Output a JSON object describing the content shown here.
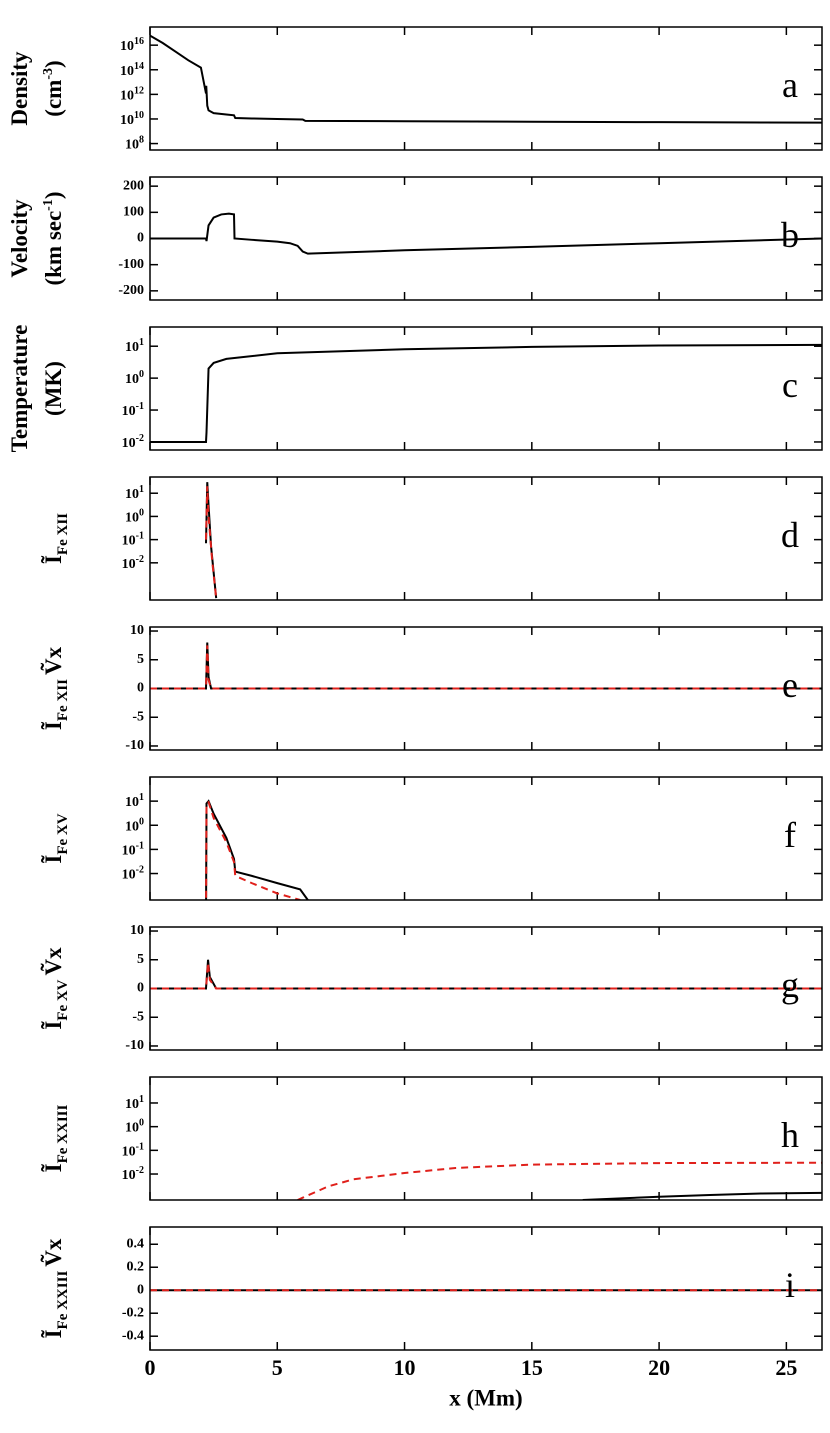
{
  "chart_data": [
    {
      "type": "line",
      "annotation": "a",
      "log_y": true,
      "ylabel": [
        [
          {
            "text": "Density"
          }
        ],
        [
          {
            "text": "(cm"
          },
          {
            "text": "-3",
            "shift": "sup"
          },
          {
            "text": ")"
          }
        ]
      ],
      "xlim": [
        0,
        26.4
      ],
      "xticks": [
        0,
        5,
        10,
        15,
        20,
        25
      ],
      "ylim": [
        30000000.0,
        3e+17
      ],
      "yticks": [
        {
          "value": 100000000.0,
          "label": "10",
          "sup": "8"
        },
        {
          "value": 10000000000.0,
          "label": "10",
          "sup": "10"
        },
        {
          "value": 1000000000000.0,
          "label": "10",
          "sup": "12"
        },
        {
          "value": 100000000000000.0,
          "label": "10",
          "sup": "14"
        },
        {
          "value": 1e+16,
          "label": "10",
          "sup": "16"
        }
      ],
      "series": [
        {
          "color": "#000000",
          "dash": false,
          "x": [
            0,
            0.5,
            1,
            1.5,
            2,
            2.2,
            2.21,
            2.25,
            2.3,
            2.5,
            3,
            3.3,
            3.35,
            4,
            5,
            6,
            6.1,
            10,
            15,
            20,
            26.4
          ],
          "values": [
            6e+16,
            1.5e+16,
            3000000000000000.0,
            600000000000000.0,
            150000000000000.0,
            1200000000000.0,
            5000000000000.0,
            120000000000.0,
            50000000000.0,
            30000000000.0,
            23000000000.0,
            20000000000.0,
            12000000000.0,
            11000000000.0,
            10000000000.0,
            9000000000.0,
            7000000000.0,
            6500000000.0,
            6000000000.0,
            5500000000.0,
            5000000000.0
          ]
        }
      ]
    },
    {
      "type": "line",
      "annotation": "b",
      "log_y": false,
      "ylabel": [
        [
          {
            "text": "Velocity"
          }
        ],
        [
          {
            "text": "(km sec"
          },
          {
            "text": "-1",
            "shift": "sup"
          },
          {
            "text": ")"
          }
        ]
      ],
      "xlim": [
        0,
        26.4
      ],
      "xticks": [
        0,
        5,
        10,
        15,
        20,
        25
      ],
      "ylim": [
        -235,
        235
      ],
      "yticks": [
        200,
        100,
        0,
        -100,
        -200
      ],
      "series": [
        {
          "color": "#000000",
          "dash": false,
          "x": [
            0,
            2.2,
            2.22,
            2.3,
            2.5,
            2.8,
            3.1,
            3.3,
            3.32,
            4,
            5,
            5.5,
            5.8,
            6,
            6.2,
            10,
            15,
            20,
            26.4
          ],
          "values": [
            0,
            0,
            -10,
            50,
            80,
            92,
            95,
            92,
            0,
            -5,
            -12,
            -18,
            -28,
            -50,
            -58,
            -45,
            -32,
            -18,
            0
          ]
        }
      ]
    },
    {
      "type": "line",
      "annotation": "c",
      "log_y": true,
      "ylabel": [
        [
          {
            "text": "Temperature"
          }
        ],
        [
          {
            "text": "(MK)"
          }
        ]
      ],
      "xlim": [
        0,
        26.4
      ],
      "xticks": [
        0,
        5,
        10,
        15,
        20,
        25
      ],
      "ylim": [
        0.0056,
        40
      ],
      "yticks": [
        {
          "value": 0.01,
          "label": "10",
          "sup": "-2"
        },
        {
          "value": 0.1,
          "label": "10",
          "sup": "-1"
        },
        {
          "value": 1,
          "label": "10",
          "sup": "0"
        },
        {
          "value": 10,
          "label": "10",
          "sup": "1"
        }
      ],
      "series": [
        {
          "color": "#000000",
          "dash": false,
          "x": [
            0,
            2.2,
            2.22,
            2.3,
            2.5,
            3,
            5,
            10,
            15,
            20,
            26.4
          ],
          "values": [
            0.01,
            0.01,
            0.02,
            2,
            3,
            4,
            6,
            8,
            9.5,
            10.5,
            11
          ]
        }
      ]
    },
    {
      "type": "line",
      "annotation": "d",
      "log_y": true,
      "ylabel": [
        [
          {
            "text": "Ĩ"
          },
          {
            "text": "Fe XII",
            "shift": "sub"
          }
        ]
      ],
      "xlim": [
        0,
        26.4
      ],
      "xticks": [
        0,
        5,
        10,
        15,
        20,
        25
      ],
      "ylim": [
        0.00025,
        50
      ],
      "yticks": [
        {
          "value": 0.01,
          "label": "10",
          "sup": "-2"
        },
        {
          "value": 0.1,
          "label": "10",
          "sup": "-1"
        },
        {
          "value": 1,
          "label": "10",
          "sup": "0"
        },
        {
          "value": 10,
          "label": "10",
          "sup": "1"
        }
      ],
      "series": [
        {
          "color": "#000000",
          "dash": false,
          "x": [
            2.2,
            2.25,
            2.3,
            2.4,
            2.6
          ],
          "values": [
            0.07,
            30,
            3,
            0.05,
            0.0003
          ]
        },
        {
          "color": "#e0201b",
          "dash": true,
          "x": [
            2.2,
            2.25,
            2.3,
            2.45,
            2.6
          ],
          "values": [
            0.1,
            20,
            1,
            0.01,
            0.0003
          ]
        }
      ]
    },
    {
      "type": "line",
      "annotation": "e",
      "log_y": false,
      "ylabel": [
        [
          {
            "text": "Ĩ"
          },
          {
            "text": "Fe XII",
            "shift": "sub"
          },
          {
            "text": "Ṽx"
          }
        ]
      ],
      "xlim": [
        0,
        26.4
      ],
      "xticks": [
        0,
        5,
        10,
        15,
        20,
        25
      ],
      "ylim": [
        -10.7,
        10.7
      ],
      "yticks": [
        10,
        5,
        0,
        -5,
        -10
      ],
      "series": [
        {
          "color": "#000000",
          "dash": false,
          "x": [
            0,
            2.2,
            2.25,
            2.3,
            2.4,
            26.4
          ],
          "values": [
            0,
            0,
            8,
            2,
            0,
            0
          ]
        },
        {
          "color": "#e0201b",
          "dash": true,
          "x": [
            0,
            2.2,
            2.25,
            2.3,
            2.4,
            26.4
          ],
          "values": [
            0,
            0,
            7.5,
            1.5,
            0,
            0
          ]
        }
      ]
    },
    {
      "type": "line",
      "annotation": "f",
      "log_y": true,
      "ylabel": [
        [
          {
            "text": "Ĩ"
          },
          {
            "text": "Fe XV",
            "shift": "sub"
          }
        ]
      ],
      "xlim": [
        0,
        26.4
      ],
      "xticks": [
        0,
        5,
        10,
        15,
        20,
        25
      ],
      "ylim": [
        0.0008,
        100
      ],
      "yticks": [
        {
          "value": 0.01,
          "label": "10",
          "sup": "-2"
        },
        {
          "value": 0.1,
          "label": "10",
          "sup": "-1"
        },
        {
          "value": 1,
          "label": "10",
          "sup": "0"
        },
        {
          "value": 10,
          "label": "10",
          "sup": "1"
        }
      ],
      "series": [
        {
          "color": "#000000",
          "dash": false,
          "x": [
            2.2,
            2.22,
            2.3,
            2.5,
            3,
            3.3,
            3.35,
            4,
            5,
            5.9,
            6.2
          ],
          "values": [
            0.0001,
            8,
            10,
            3,
            0.3,
            0.04,
            0.012,
            0.008,
            0.004,
            0.0022,
            0.0008
          ]
        },
        {
          "color": "#e0201b",
          "dash": true,
          "x": [
            2.2,
            2.22,
            2.3,
            2.5,
            3,
            3.3,
            3.35,
            4,
            5,
            5.9
          ],
          "values": [
            0.0001,
            8,
            9,
            2,
            0.2,
            0.03,
            0.008,
            0.004,
            0.0015,
            0.0008
          ]
        }
      ]
    },
    {
      "type": "line",
      "annotation": "g",
      "log_y": false,
      "ylabel": [
        [
          {
            "text": "Ĩ"
          },
          {
            "text": "Fe XV",
            "shift": "sub"
          },
          {
            "text": "Ṽx"
          }
        ]
      ],
      "xlim": [
        0,
        26.4
      ],
      "xticks": [
        0,
        5,
        10,
        15,
        20,
        25
      ],
      "ylim": [
        -10.7,
        10.7
      ],
      "yticks": [
        10,
        5,
        0,
        -5,
        -10
      ],
      "series": [
        {
          "color": "#000000",
          "dash": false,
          "x": [
            0,
            2.2,
            2.28,
            2.35,
            2.6,
            26.4
          ],
          "values": [
            0,
            0,
            5,
            2,
            0,
            0
          ]
        },
        {
          "color": "#e0201b",
          "dash": true,
          "x": [
            0,
            2.2,
            2.28,
            2.35,
            2.6,
            26.4
          ],
          "values": [
            0,
            0,
            4.5,
            1.5,
            0,
            0
          ]
        }
      ]
    },
    {
      "type": "line",
      "annotation": "h",
      "log_y": true,
      "ylabel": [
        [
          {
            "text": "Ĩ"
          },
          {
            "text": "Fe XXIII",
            "shift": "sub"
          }
        ]
      ],
      "xlim": [
        0,
        26.4
      ],
      "xticks": [
        0,
        5,
        10,
        15,
        20,
        25
      ],
      "ylim": [
        0.0008,
        125
      ],
      "yticks": [
        {
          "value": 0.01,
          "label": "10",
          "sup": "-2"
        },
        {
          "value": 0.1,
          "label": "10",
          "sup": "-1"
        },
        {
          "value": 1,
          "label": "10",
          "sup": "0"
        },
        {
          "value": 10,
          "label": "10",
          "sup": "1"
        }
      ],
      "series": [
        {
          "color": "#000000",
          "dash": false,
          "x": [
            17,
            20,
            22,
            24,
            26.4
          ],
          "values": [
            0.0008,
            0.0011,
            0.0013,
            0.0015,
            0.0016
          ]
        },
        {
          "color": "#e0201b",
          "dash": true,
          "x": [
            5.8,
            6,
            7,
            8,
            10,
            12,
            15,
            20,
            26.4
          ],
          "values": [
            0.0008,
            0.001,
            0.003,
            0.006,
            0.011,
            0.018,
            0.025,
            0.029,
            0.03
          ]
        }
      ]
    },
    {
      "type": "line",
      "annotation": "i",
      "log_y": false,
      "ylabel": [
        [
          {
            "text": "Ĩ"
          },
          {
            "text": "Fe XXIII",
            "shift": "sub"
          },
          {
            "text": "Ṽx"
          }
        ]
      ],
      "xlim": [
        0,
        26.4
      ],
      "xticks": [
        0,
        5,
        10,
        15,
        20,
        25
      ],
      "xlabel": "x (Mm)",
      "ylim": [
        -0.52,
        0.55
      ],
      "yticks": [
        0.4,
        0.2,
        0,
        -0.2,
        -0.4
      ],
      "series": [
        {
          "color": "#000000",
          "dash": false,
          "x": [
            0,
            26.4
          ],
          "values": [
            0,
            0
          ]
        },
        {
          "color": "#e0201b",
          "dash": true,
          "x": [
            0,
            26.4
          ],
          "values": [
            0,
            0
          ]
        }
      ]
    }
  ]
}
